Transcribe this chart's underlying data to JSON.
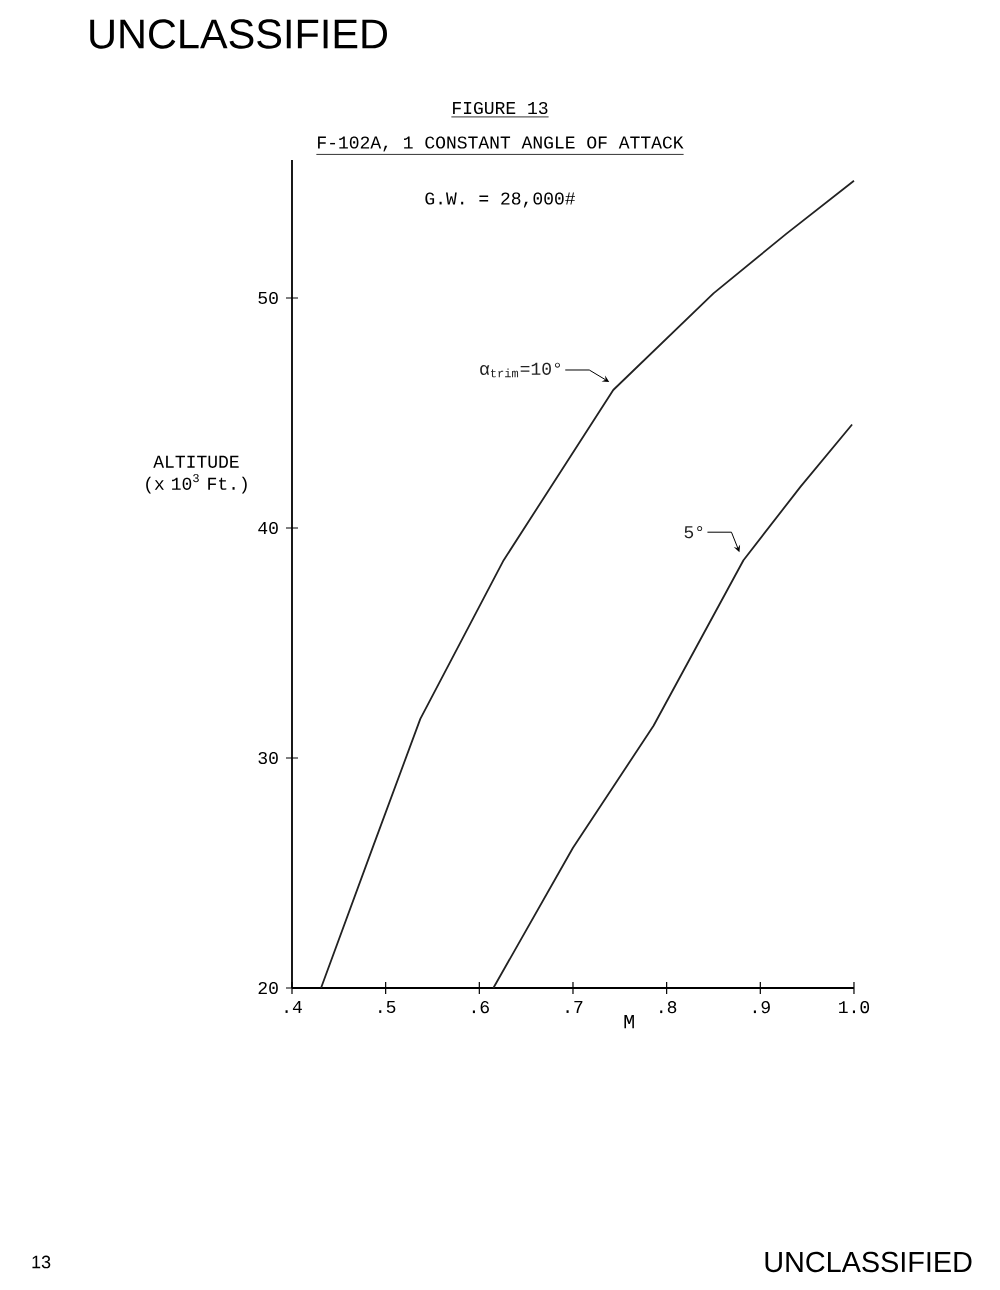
{
  "chart_data": {
    "type": "line",
    "title": "FIGURE 13",
    "subtitle": "F-102A, 1  CONSTANT ANGLE OF ATTACK",
    "xlabel": "M",
    "ylabel": "ALTITUDE (x 10$^{3}$ Ft.)",
    "annotations": [
      "UNCLASSIFIED",
      "G.W. = 28,000#",
      "UNCLASSIFIED",
      "13"
    ],
    "xlim": [
      0.4,
      1.0
    ],
    "ylim": [
      20,
      56
    ],
    "xticks": [
      {
        "value": 0.4,
        "label": ".4"
      },
      {
        "value": 0.5,
        "label": ".5"
      },
      {
        "value": 0.6,
        "label": ".6"
      },
      {
        "value": 0.7,
        "label": ".7"
      },
      {
        "value": 0.8,
        "label": ".8"
      },
      {
        "value": 0.9,
        "label": ".9"
      },
      {
        "value": 1.0,
        "label": "1.0"
      }
    ],
    "yticks": [
      20,
      30,
      40,
      50
    ],
    "legend": false,
    "grid": false,
    "marker": "none",
    "line_style": "solid",
    "series": [
      {
        "name": "α$_{trim}$=10°",
        "color": "#222222",
        "x": [
          0.431,
          0.487,
          0.537,
          0.626,
          0.743,
          0.85,
          0.928,
          1.0
        ],
        "values": [
          20,
          26.2,
          31.7,
          38.6,
          46.0,
          50.2,
          52.8,
          55.1
        ]
      },
      {
        "name": "5°",
        "color": "#222222",
        "x": [
          0.615,
          0.7,
          0.786,
          0.882,
          0.943,
          0.998
        ],
        "values": [
          20,
          26.1,
          31.4,
          38.6,
          41.8,
          44.5
        ]
      }
    ]
  }
}
